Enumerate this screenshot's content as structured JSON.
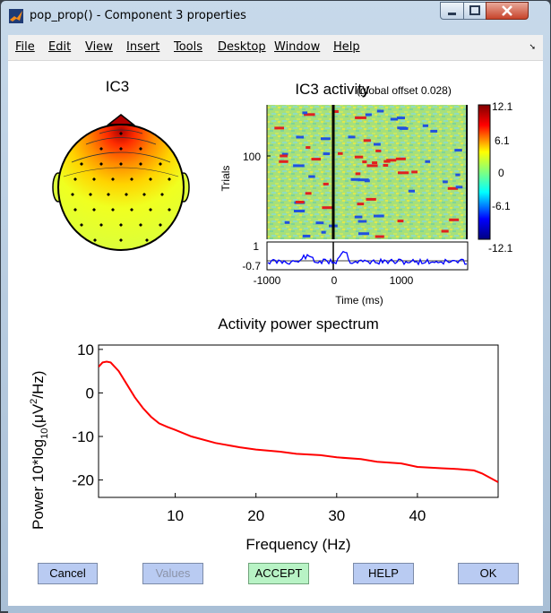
{
  "window": {
    "title": "pop_prop() - Component 3 properties"
  },
  "menu": {
    "items": [
      "File",
      "Edit",
      "View",
      "Insert",
      "Tools",
      "Desktop",
      "Window",
      "Help"
    ]
  },
  "topo": {
    "title": "IC3"
  },
  "erp_image": {
    "title": "IC3 activity",
    "subtitle": "(global offset 0.028)",
    "ylabel": "Trials",
    "ytick": "100",
    "erp_ytick_top": "1",
    "erp_ytick_bottom": "-0.7",
    "xlabel": "Time (ms)",
    "xticks": [
      "-1000",
      "0",
      "1000"
    ],
    "colorbar_ticks": [
      "12.1",
      "6.1",
      "0",
      "-6.1",
      "-12.1"
    ]
  },
  "spectrum": {
    "title": "Activity power spectrum",
    "ylabel_prefix": "Power 10*log",
    "ylabel_sub": "10",
    "ylabel_mid": "(μV",
    "ylabel_sup": "2",
    "ylabel_end": "/Hz)",
    "xlabel": "Frequency (Hz)"
  },
  "buttons": {
    "cancel": "Cancel",
    "values": "Values",
    "accept": "ACCEPT",
    "help": "HELP",
    "ok": "OK"
  },
  "chart_data": {
    "type": "line",
    "title": "Activity power spectrum",
    "xlabel": "Frequency (Hz)",
    "ylabel": "Power 10*log10(μV2/Hz)",
    "xlim": [
      0.5,
      50
    ],
    "ylim": [
      -24,
      11
    ],
    "xticks": [
      10,
      20,
      30,
      40
    ],
    "yticks": [
      10,
      0,
      -10,
      -20
    ],
    "series": [
      {
        "name": "spectrum",
        "color": "#ff0000",
        "x": [
          0.5,
          1,
          1.5,
          2,
          3,
          4,
          5,
          6,
          7,
          8,
          9,
          10,
          12,
          15,
          18,
          20,
          23,
          25,
          28,
          30,
          33,
          35,
          38,
          40,
          43,
          45,
          47,
          48,
          50
        ],
        "y": [
          6,
          7,
          7.2,
          7,
          5,
          2,
          -1,
          -3.5,
          -5.5,
          -7,
          -7.8,
          -8.5,
          -10,
          -11.5,
          -12.5,
          -13,
          -13.5,
          -14,
          -14.3,
          -14.8,
          -15.2,
          -15.8,
          -16.2,
          -17,
          -17.3,
          -17.5,
          -17.8,
          -18.5,
          -20.5
        ]
      }
    ]
  }
}
